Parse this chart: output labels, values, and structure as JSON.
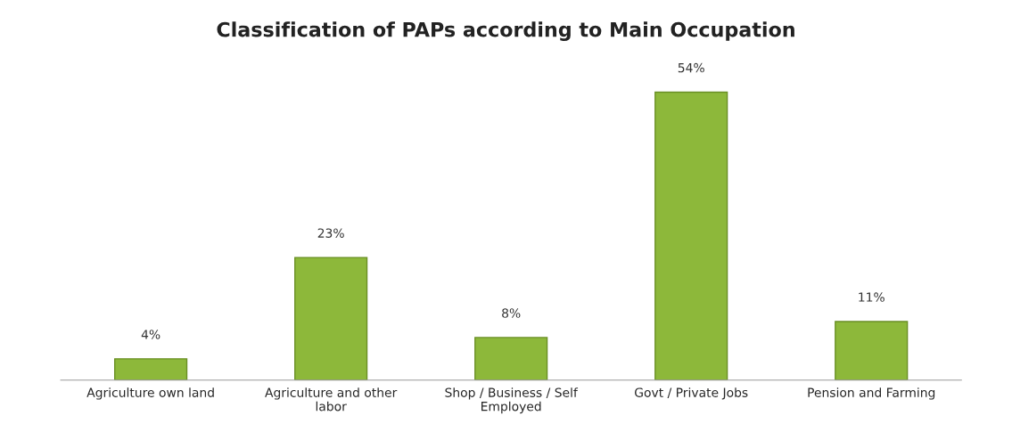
{
  "chart_data": {
    "type": "bar",
    "title": "Classification of PAPs according to Main Occupation",
    "categories": [
      "Agriculture own land",
      "Agriculture and other labor",
      "Shop / Business / Self Employed",
      "Govt / Private Jobs",
      "Pension and Farming"
    ],
    "values": [
      4,
      23,
      8,
      54,
      11
    ],
    "value_labels": [
      "4%",
      "23%",
      "8%",
      "54%",
      "11%"
    ],
    "color": "#8db83a",
    "grid": false,
    "legend": false
  }
}
